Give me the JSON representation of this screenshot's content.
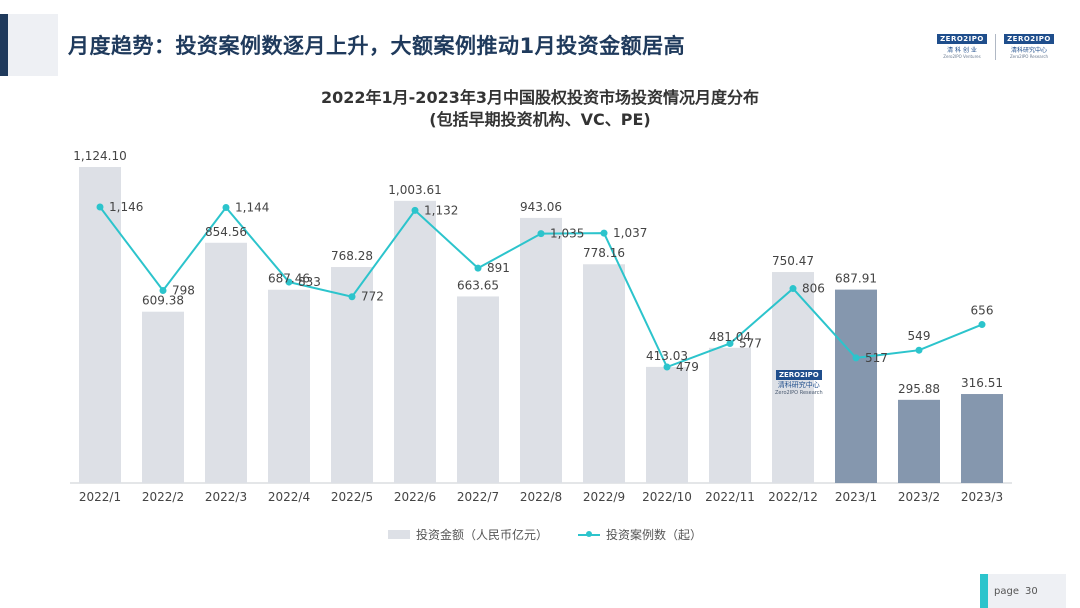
{
  "header": {
    "title": "月度趋势：投资案例数逐月上升，大额案例推动1月投资金额居高",
    "logo_left": {
      "mark": "ZERO2IPO",
      "cn": "清 科 创 业",
      "en": "Zero2IPO Ventures"
    },
    "logo_right": {
      "mark": "ZERO2IPO",
      "cn": "清科研究中心",
      "en": "Zero2IPO Research"
    }
  },
  "watermark": {
    "mark": "ZERO2IPO",
    "cn": "清科研究中心",
    "en": "Zero2IPO Research"
  },
  "chart_data": {
    "type": "bar",
    "title": "2022年1月-2023年3月中国股权投资市场投资情况月度分布",
    "subtitle": "(包括早期投资机构、VC、PE)",
    "categories": [
      "2022/1",
      "2022/2",
      "2022/3",
      "2022/4",
      "2022/5",
      "2022/6",
      "2022/7",
      "2022/8",
      "2022/9",
      "2022/10",
      "2022/11",
      "2022/12",
      "2023/1",
      "2023/2",
      "2023/3"
    ],
    "bar_series": {
      "name": "投资金额（人民币亿元）",
      "values": [
        1124.1,
        609.38,
        854.56,
        687.46,
        768.28,
        1003.61,
        663.65,
        943.06,
        778.16,
        413.03,
        481.04,
        750.47,
        687.91,
        295.88,
        316.51
      ],
      "labels": [
        "1,124.10",
        "609.38",
        "854.56",
        "687.46",
        "768.28",
        "1,003.61",
        "663.65",
        "943.06",
        "778.16",
        "413.03",
        "481.04",
        "750.47",
        "687.91",
        "295.88",
        "316.51"
      ],
      "color_2022": "#dde0e6",
      "color_2023": "#8597ae"
    },
    "line_series": {
      "name": "投资案例数（起）",
      "values": [
        1146,
        798,
        1144,
        833,
        772,
        1132,
        891,
        1035,
        1037,
        479,
        577,
        806,
        517,
        549,
        656
      ],
      "labels": [
        "1,146",
        "798",
        "1,144",
        "833",
        "772",
        "1,132",
        "891",
        "1,035",
        "1,037",
        "479",
        "577",
        "806",
        "517",
        "549",
        "656"
      ],
      "color": "#2cc4cc"
    },
    "grid": false,
    "legend_position": "bottom"
  },
  "footer": {
    "page_label": "page",
    "page_number": "30"
  }
}
